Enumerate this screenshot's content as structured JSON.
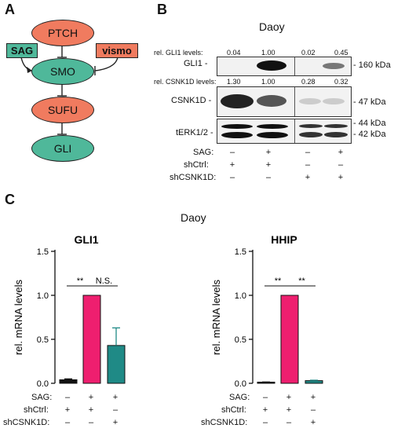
{
  "panels": {
    "a": "A",
    "b": "B",
    "c": "C"
  },
  "pathway": {
    "ptch": "PTCH",
    "smo": "SMO",
    "sufu": "SUFU",
    "gli": "GLI",
    "sag": "SAG",
    "vismo": "vismo",
    "colors": {
      "orange": "#f07b5f",
      "teal": "#4fb89a",
      "sag_box": "#4fb89a",
      "vismo_box": "#f07b5f"
    }
  },
  "blot": {
    "title": "Daoy",
    "gli1_levels_label": "rel. GLI1 levels:",
    "gli1_levels": [
      "0.04",
      "1.00",
      "0.02",
      "0.45"
    ],
    "csnk1d_levels_label": "rel. CSNK1D levels:",
    "csnk1d_levels": [
      "1.30",
      "1.00",
      "0.28",
      "0.32"
    ],
    "rows": {
      "gli1": {
        "label": "GLI1 -",
        "kda": "- 160 kDa"
      },
      "csnk1d": {
        "label": "CSNK1D -",
        "kda": "- 47 kDa"
      },
      "terk": {
        "label": "tERK1/2 -",
        "kda1": "- 44 kDa",
        "kda2": "- 42 kDa"
      }
    },
    "conditions": {
      "sag_label": "SAG:",
      "shctrl_label": "shCtrl:",
      "shcsnk1d_label": "shCSNK1D:",
      "sag": [
        "–",
        "+",
        "–",
        "+"
      ],
      "shctrl": [
        "+",
        "+",
        "–",
        "–"
      ],
      "shcsnk1d": [
        "–",
        "–",
        "+",
        "+"
      ]
    }
  },
  "panel_c": {
    "title": "Daoy",
    "ylabel": "rel. mRNA levels",
    "conditions": {
      "sag_label": "SAG:",
      "shctrl_label": "shCtrl:",
      "shcsnk1d_label": "shCSNK1D:",
      "sag": [
        "–",
        "+",
        "+"
      ],
      "shctrl": [
        "+",
        "+",
        "–"
      ],
      "shcsnk1d": [
        "–",
        "–",
        "+"
      ]
    }
  },
  "chart_data": [
    {
      "type": "bar",
      "title": "GLI1",
      "ylabel": "rel. mRNA levels",
      "ylim": [
        0,
        1.5
      ],
      "yticks": [
        "0.0",
        "0.5",
        "1.0",
        "1.5"
      ],
      "values": [
        0.04,
        1.0,
        0.43
      ],
      "errors": [
        0.01,
        0.0,
        0.2
      ],
      "colors": [
        "#111111",
        "#ee1f6f",
        "#1f8a86"
      ],
      "annotations": [
        {
          "from": 0,
          "to": 1,
          "text": "**"
        },
        {
          "from": 1,
          "to": 2,
          "text": "N.S."
        }
      ]
    },
    {
      "type": "bar",
      "title": "HHIP",
      "ylabel": "rel. mRNA levels",
      "ylim": [
        0,
        1.5
      ],
      "yticks": [
        "0.0",
        "0.5",
        "1.0",
        "1.5"
      ],
      "values": [
        0.01,
        1.0,
        0.03
      ],
      "errors": [
        0.005,
        0.0,
        0.005
      ],
      "colors": [
        "#111111",
        "#ee1f6f",
        "#1f8a86"
      ],
      "annotations": [
        {
          "from": 0,
          "to": 1,
          "text": "**"
        },
        {
          "from": 1,
          "to": 2,
          "text": "**"
        }
      ]
    }
  ]
}
